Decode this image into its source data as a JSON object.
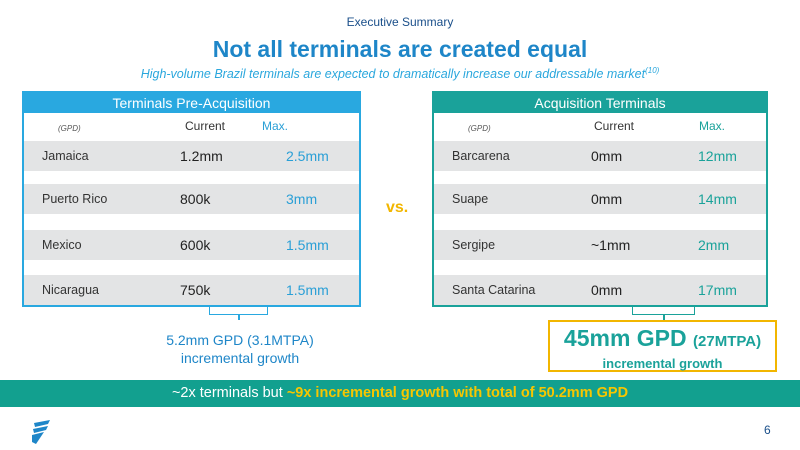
{
  "header": {
    "eyebrow": "Executive Summary",
    "title": "Not all terminals are created equal",
    "subtitle": "High-volume Brazil terminals are expected to dramatically increase our addressable market",
    "subtitle_sup": "(10)"
  },
  "left_panel": {
    "title": "Terminals Pre-Acquisition",
    "unit_label": "(GPD)",
    "current_label": "Current",
    "max_label": "Max.",
    "rows": [
      {
        "name": "Jamaica",
        "current": "1.2mm",
        "max": "2.5mm"
      },
      {
        "name": "Puerto Rico",
        "current": "800k",
        "max": "3mm"
      },
      {
        "name": "Mexico",
        "current": "600k",
        "max": "1.5mm"
      },
      {
        "name": "Nicaragua",
        "current": "750k",
        "max": "1.5mm"
      }
    ]
  },
  "right_panel": {
    "title": "Acquisition Terminals",
    "unit_label": "(GPD)",
    "current_label": "Current",
    "max_label": "Max.",
    "rows": [
      {
        "name": "Barcarena",
        "current": "0mm",
        "max": "12mm"
      },
      {
        "name": "Suape",
        "current": "0mm",
        "max": "14mm"
      },
      {
        "name": "Sergipe",
        "current": "~1mm",
        "max": "2mm"
      },
      {
        "name": "Santa Catarina",
        "current": "0mm",
        "max": "17mm"
      }
    ]
  },
  "vs_label": "vs.",
  "left_summary": {
    "line1": "5.2mm GPD (3.1MTPA)",
    "line2": "incremental growth"
  },
  "right_summary": {
    "big": "45mm GPD",
    "big_small": "(27MTPA)",
    "sub": "incremental growth"
  },
  "banner": {
    "prefix": "~2x terminals but ",
    "highlight": "~9x incremental growth with total of 50.2mm GPD"
  },
  "footer": {
    "page_number": "6"
  },
  "colors": {
    "blue": "#29a8e0",
    "teal": "#1aa29a",
    "gold": "#f2b600",
    "banner": "#12a08f",
    "row_bg": "#e3e4e5"
  }
}
